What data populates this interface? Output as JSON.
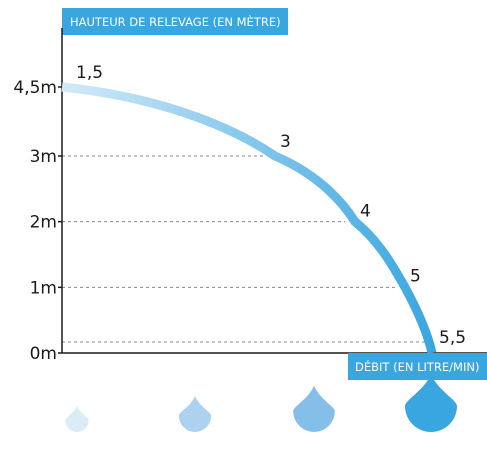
{
  "chart_data": {
    "type": "line",
    "ylabel": "HAUTEUR DE RELEVAGE (EN MÈTRE)",
    "xlabel": "DÉBIT (EN LITRE/MIN)",
    "y_tick_labels": [
      "0m",
      "1m",
      "2m",
      "3m",
      "4,5m"
    ],
    "y_ticks": [
      0,
      1,
      2,
      3,
      4.5
    ],
    "ylim": [
      0,
      4.8
    ],
    "grid": "dashed horizontal lines at 1m, 2m, 3m ending at the curve",
    "series": [
      {
        "points": [
          {
            "label": "1,5",
            "flow": 1.5,
            "height": 4.5
          },
          {
            "label": "3",
            "flow": 3,
            "height": 3
          },
          {
            "label": "4",
            "flow": 4,
            "height": 2
          },
          {
            "label": "5",
            "flow": 5,
            "height": 1
          },
          {
            "label": "5,5",
            "flow": 5.5,
            "height": 0
          }
        ]
      }
    ],
    "colors": {
      "label_background": "#3aa6df",
      "curve_start": "#d3eaf8",
      "curve_end": "#3aa6df",
      "axis": "#1a1a1a",
      "drops": [
        "#dbecf9",
        "#acd2f0",
        "#84bfea",
        "#3aa6df"
      ]
    },
    "drop_icons": [
      "water-drop-icon",
      "water-drop-icon",
      "water-drop-icon",
      "water-drop-icon"
    ]
  }
}
